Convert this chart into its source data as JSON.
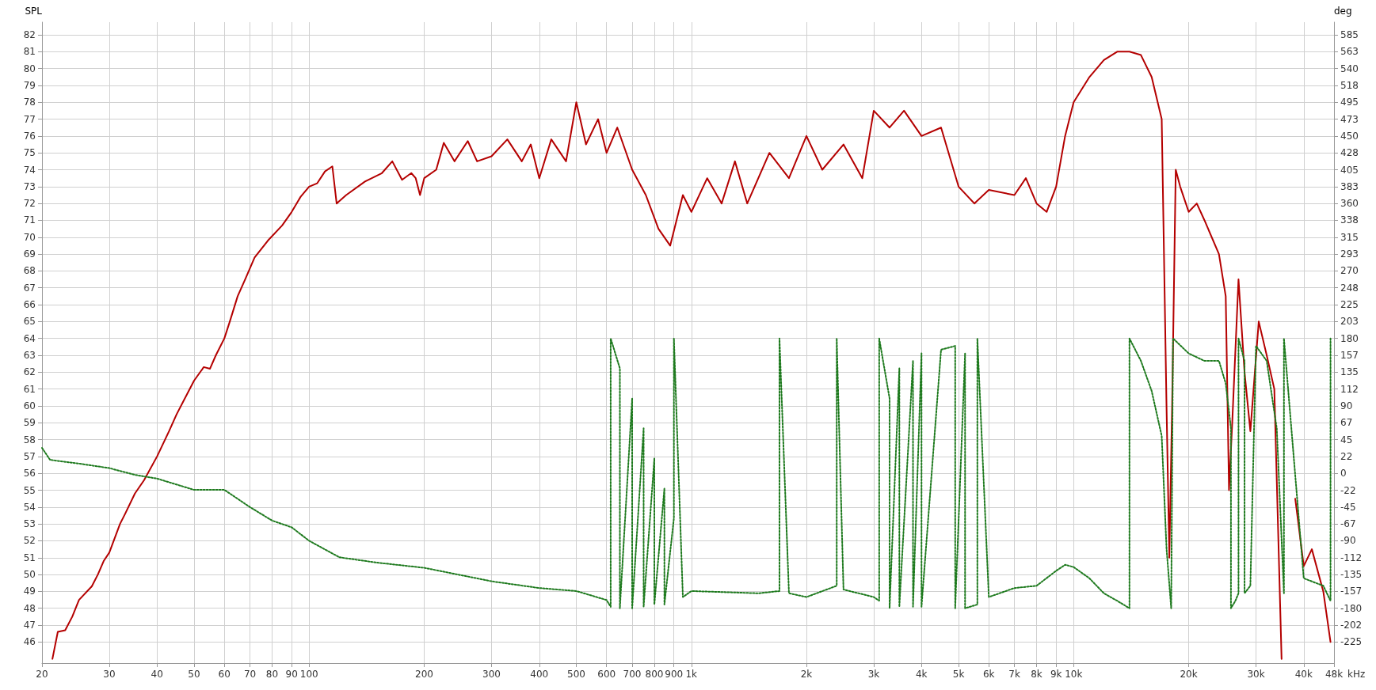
{
  "chart_data": {
    "type": "line",
    "ylabel": "SPL",
    "y2label": "deg",
    "log": "x",
    "grid": true,
    "marker": "none",
    "xlim": [
      20,
      48000
    ],
    "xticks": [
      20,
      30,
      40,
      50,
      60,
      70,
      80,
      90,
      100,
      200,
      300,
      400,
      500,
      600,
      700,
      800,
      900,
      {
        "value": 1000,
        "label": "1k"
      },
      {
        "value": 2000,
        "label": "2k"
      },
      {
        "value": 3000,
        "label": "3k"
      },
      {
        "value": 4000,
        "label": "4k"
      },
      {
        "value": 5000,
        "label": "5k"
      },
      {
        "value": 6000,
        "label": "6k"
      },
      {
        "value": 7000,
        "label": "7k"
      },
      {
        "value": 8000,
        "label": "8k"
      },
      {
        "value": 9000,
        "label": "9k"
      },
      {
        "value": 10000,
        "label": "10k"
      },
      {
        "value": 20000,
        "label": "20k"
      },
      {
        "value": 30000,
        "label": "30k"
      },
      {
        "value": 40000,
        "label": "40k"
      },
      {
        "value": 48000,
        "label": "48k"
      }
    ],
    "xlabel": "kHz",
    "ylim": [
      44.75,
      82.75
    ],
    "yticks": [
      46,
      47,
      48,
      49,
      50,
      51,
      52,
      53,
      54,
      55,
      56,
      57,
      58,
      59,
      60,
      61,
      62,
      63,
      64,
      65,
      66,
      67,
      68,
      69,
      70,
      71,
      72,
      73,
      74,
      75,
      76,
      77,
      78,
      79,
      80,
      81,
      82
    ],
    "y2lim": [
      -253.125,
      601.875
    ],
    "y2ticks": [
      585,
      {
        "value": 562.5,
        "label": "563"
      },
      540,
      {
        "value": 517.5,
        "label": "518"
      },
      495,
      {
        "value": 472.5,
        "label": "473"
      },
      450,
      {
        "value": 427.5,
        "label": "428"
      },
      405,
      {
        "value": 382.5,
        "label": "383"
      },
      360,
      {
        "value": 337.5,
        "label": "338"
      },
      315,
      {
        "value": 292.5,
        "label": "293"
      },
      270,
      {
        "value": 247.5,
        "label": "248"
      },
      225,
      {
        "value": 202.5,
        "label": "203"
      },
      180,
      {
        "value": 157.5,
        "label": "157"
      },
      135,
      {
        "value": 112.5,
        "label": "112"
      },
      90,
      {
        "value": 67.5,
        "label": "67"
      },
      45,
      {
        "value": 22.5,
        "label": "22"
      },
      0,
      {
        "value": -22.5,
        "label": "-22"
      },
      -45,
      {
        "value": -67.5,
        "label": "-67"
      },
      -90,
      {
        "value": -112.5,
        "label": "-112"
      },
      -135,
      {
        "value": -157.5,
        "label": "-157"
      },
      -180,
      {
        "value": -202.5,
        "label": "-202"
      },
      -225
    ],
    "series": [
      {
        "color": "#b40000",
        "line_style": "solid",
        "x": [
          21.3,
          22,
          23,
          24,
          25,
          27,
          28,
          29,
          30,
          32,
          33,
          35,
          37,
          40,
          43,
          45,
          50,
          53,
          55,
          57,
          60,
          62,
          65,
          68,
          72,
          78,
          85,
          90,
          95,
          100,
          105,
          110,
          115,
          118,
          125,
          140,
          155,
          165,
          175,
          185,
          190,
          195,
          200,
          215,
          225,
          240,
          260,
          275,
          300,
          330,
          360,
          380,
          400,
          430,
          470,
          500,
          530,
          570,
          600,
          640,
          700,
          760,
          820,
          880,
          950,
          1000,
          1100,
          1200,
          1300,
          1400,
          1600,
          1800,
          2000,
          2200,
          2500,
          2800,
          3000,
          3300,
          3600,
          4000,
          4500,
          5000,
          5500,
          6000,
          7000,
          7500,
          8000,
          8500,
          9000,
          9500,
          10000,
          11000,
          12000,
          13000,
          14000,
          15000,
          16000,
          17000,
          17500,
          17800,
          18100,
          18500,
          19000,
          20000,
          21000,
          22000,
          24000,
          25000,
          25500,
          26000,
          27000,
          28000,
          29000,
          30500,
          32000,
          33500,
          35000,
          36500,
          38000,
          40000,
          42000,
          45000,
          47000
        ],
        "values": [
          45.0,
          46.6,
          46.7,
          47.5,
          48.5,
          49.3,
          50.0,
          50.8,
          51.3,
          53.0,
          53.6,
          54.8,
          55.6,
          57.0,
          58.5,
          59.5,
          61.5,
          62.3,
          62.2,
          63.0,
          64.0,
          65.0,
          66.5,
          67.5,
          68.8,
          69.8,
          70.7,
          71.5,
          72.4,
          73.0,
          73.2,
          73.9,
          74.2,
          72.0,
          72.5,
          73.3,
          73.8,
          74.5,
          73.4,
          73.8,
          73.5,
          72.5,
          73.5,
          74.0,
          75.6,
          74.5,
          75.7,
          74.5,
          74.8,
          75.8,
          74.5,
          75.5,
          73.5,
          75.8,
          74.5,
          78.0,
          75.5,
          77.0,
          75.0,
          76.5,
          74.0,
          72.5,
          70.5,
          69.5,
          72.5,
          71.5,
          73.5,
          72.0,
          74.5,
          72.0,
          75.0,
          73.5,
          76.0,
          74.0,
          75.5,
          73.5,
          77.5,
          76.5,
          77.5,
          76.0,
          76.5,
          73.0,
          72.0,
          72.8,
          72.5,
          73.5,
          72.0,
          71.5,
          73.0,
          76.0,
          78.0,
          79.5,
          80.5,
          81.0,
          81.0,
          80.8,
          79.5,
          77.0,
          60.0,
          51.0,
          60.0,
          74.0,
          73.0,
          71.5,
          72.0,
          71.0,
          69.0,
          66.5,
          55.0,
          59.0,
          67.5,
          62.0,
          58.5,
          65.0,
          63.0,
          61.0,
          45.0,
          null,
          54.5,
          50.5,
          51.5,
          49.0,
          46.0
        ]
      },
      {
        "color": "#1e7a1e",
        "line_style": "dotted",
        "axis": "y2",
        "x": [
          20,
          21,
          25,
          30,
          35,
          40,
          50,
          60,
          70,
          80,
          90,
          100,
          120,
          150,
          200,
          300,
          400,
          500,
          600,
          615,
          615,
          650,
          650,
          700,
          700,
          750,
          750,
          800,
          800,
          850,
          850,
          900,
          900,
          950,
          1000,
          1500,
          1700,
          1700,
          1800,
          2000,
          2400,
          2400,
          2500,
          3000,
          3100,
          3100,
          3300,
          3300,
          3500,
          3500,
          3800,
          3800,
          4000,
          4000,
          4500,
          4900,
          4900,
          5200,
          5200,
          5600,
          5600,
          6000,
          7000,
          8000,
          9000,
          9500,
          10000,
          11000,
          12000,
          13000,
          14000,
          14000,
          15000,
          16000,
          17000,
          17500,
          18000,
          18200,
          20000,
          22000,
          24000,
          25000,
          25800,
          25800,
          26500,
          27000,
          27000,
          28000,
          28000,
          29000,
          30000,
          32000,
          34000,
          35500,
          35500,
          40000,
          45000,
          47000,
          47000
        ],
        "values": [
          34,
          18,
          13,
          7,
          -2,
          -7,
          -22,
          -22,
          -45,
          -63,
          -72,
          -90,
          -112,
          -119,
          -126,
          -144,
          -153,
          -157,
          -169,
          -178,
          180,
          140,
          -180,
          100,
          -180,
          60,
          -178,
          20,
          -175,
          -20,
          -175,
          -60,
          180,
          -165,
          -157,
          -160,
          -157,
          180,
          -160,
          -165,
          -150,
          180,
          -155,
          -165,
          -170,
          180,
          100,
          -180,
          140,
          -178,
          150,
          -178,
          160,
          -178,
          165,
          170,
          -180,
          160,
          -180,
          -175,
          180,
          -165,
          -153,
          -150,
          -130,
          -122,
          -125,
          -140,
          -160,
          -170,
          -180,
          180,
          150,
          110,
          50,
          -100,
          -180,
          180,
          160,
          150,
          150,
          120,
          60,
          -180,
          -170,
          -160,
          180,
          150,
          -160,
          -150,
          170,
          150,
          60,
          -160,
          180,
          -140,
          -150,
          -170,
          180
        ]
      }
    ]
  }
}
